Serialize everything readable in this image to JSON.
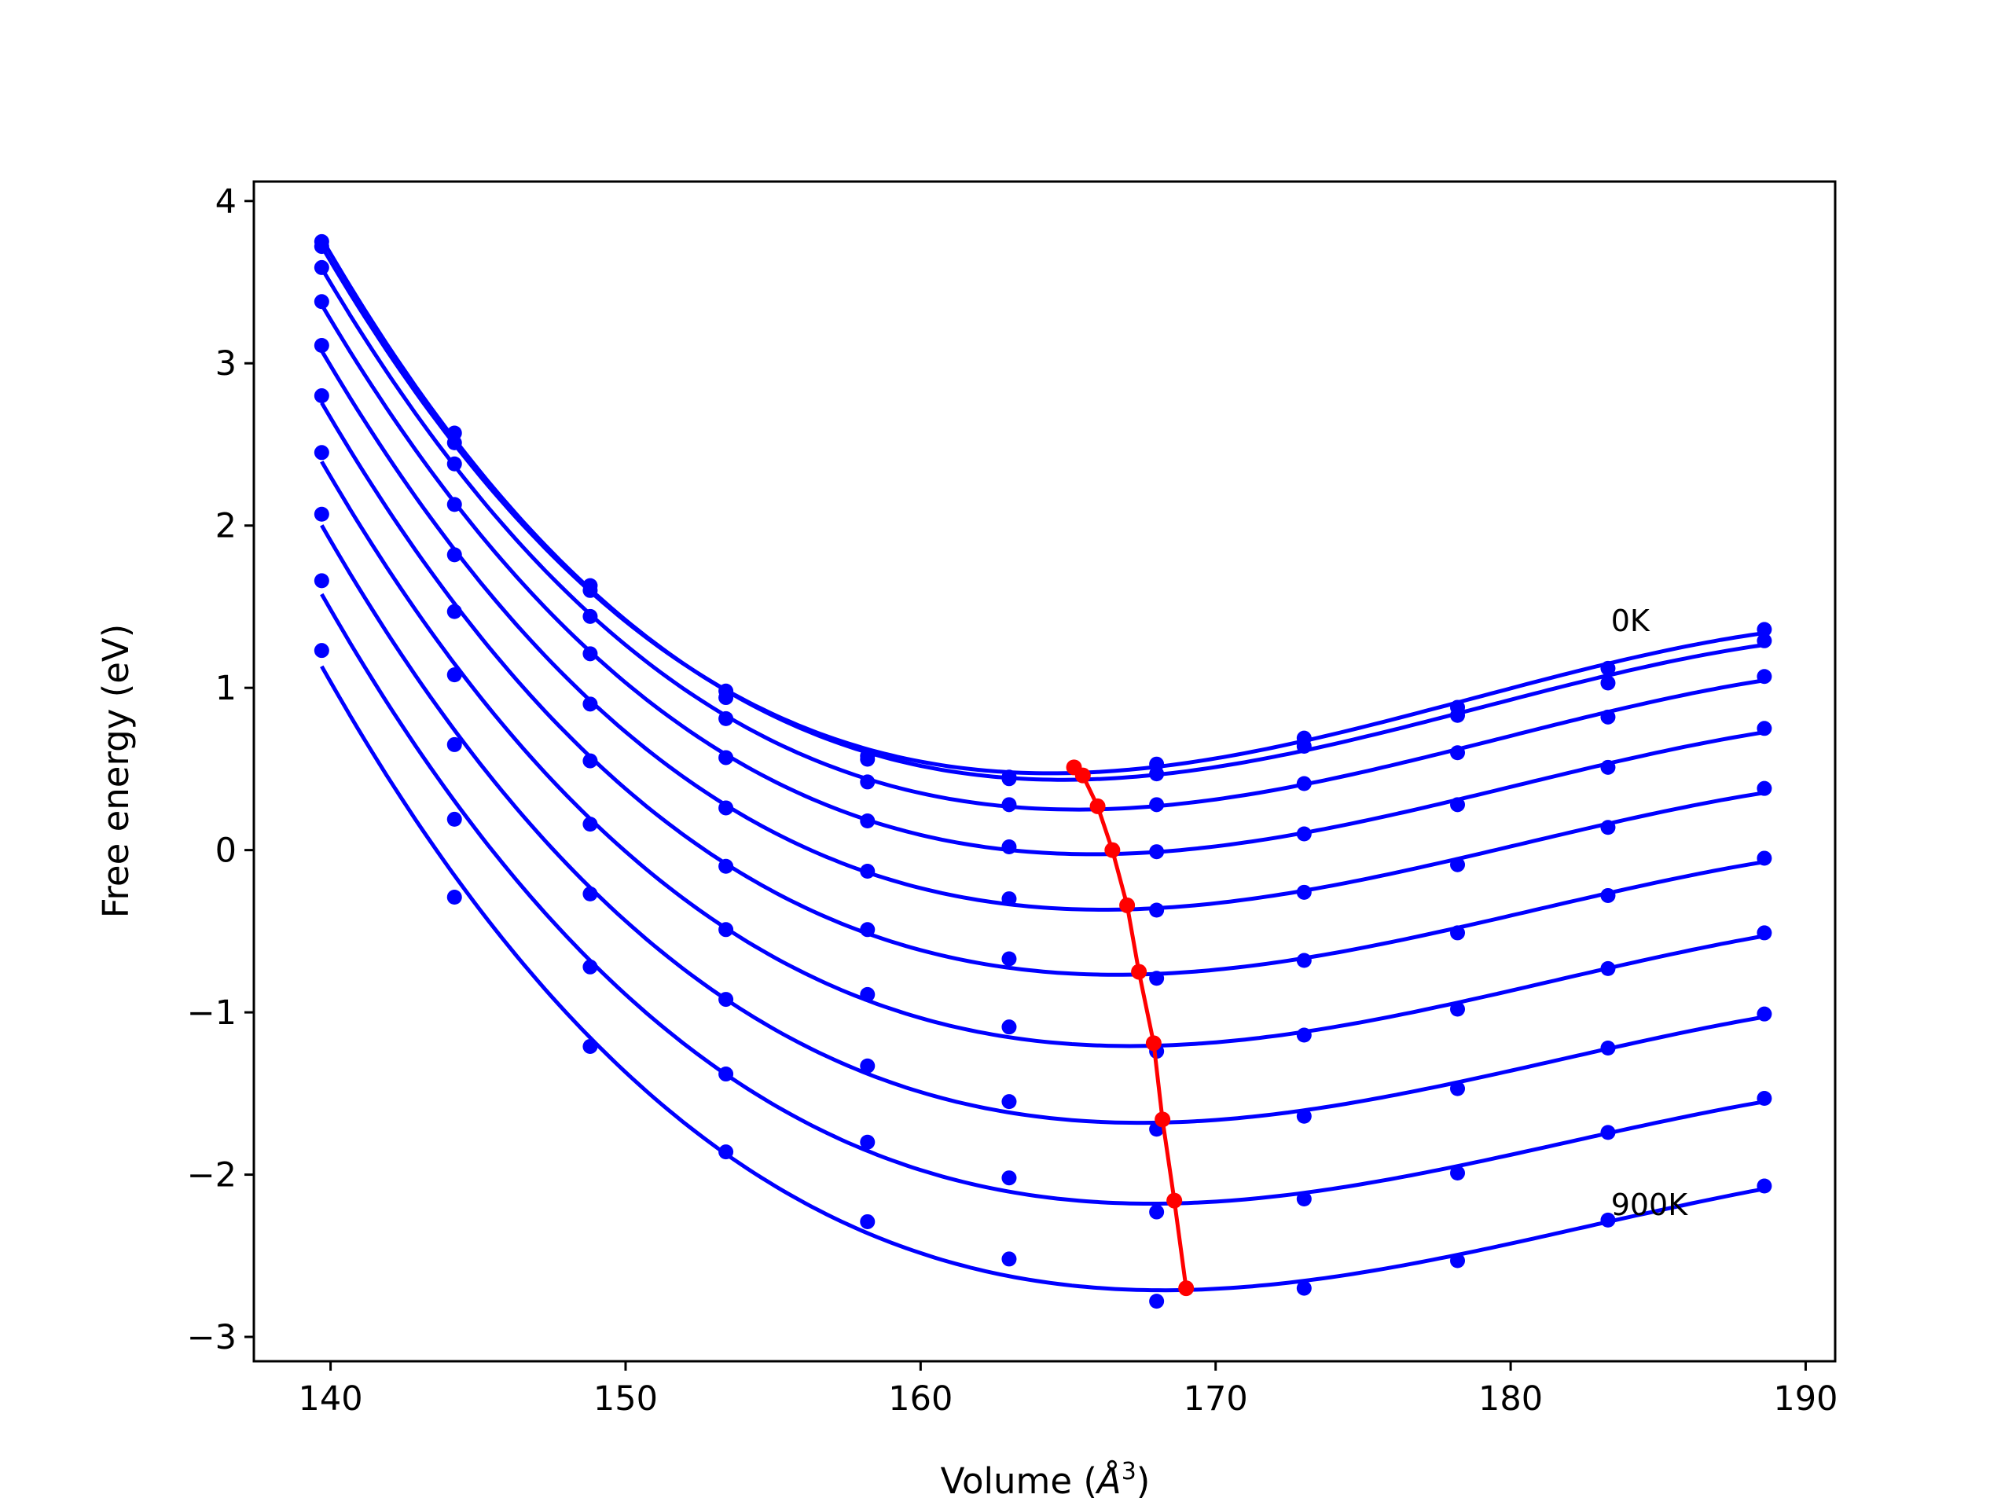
{
  "chart_data": {
    "type": "line",
    "xlabel": "Volume (Å³)",
    "xlabel_prefix": "Volume (",
    "xlabel_unit_base": "Å",
    "xlabel_unit_exp": "3",
    "xlabel_suffix": ")",
    "ylabel": "Free energy (eV)",
    "xlim": [
      137.4,
      191.0
    ],
    "ylim": [
      -3.15,
      4.12
    ],
    "xticks": [
      140,
      150,
      160,
      170,
      180,
      190
    ],
    "yticks": [
      4,
      3,
      2,
      1,
      0,
      -1,
      -2,
      -3
    ],
    "ytick_labels": [
      "4",
      "3",
      "2",
      "1",
      "0",
      "−1",
      "−2",
      "−3"
    ],
    "grid": false,
    "annotations": [
      {
        "text": "0K",
        "x": 183.4,
        "y": 1.35
      },
      {
        "text": "900K",
        "x": 183.4,
        "y": -2.25
      }
    ],
    "colors": {
      "curves": "#0000ff",
      "minima": "#ff0000"
    },
    "x_points": [
      139.7,
      144.2,
      148.8,
      153.4,
      158.2,
      163.0,
      168.0,
      173.0,
      178.2,
      183.3,
      188.6
    ],
    "series": [
      {
        "values": [
          3.72,
          2.51,
          1.6,
          0.98,
          0.58,
          0.45,
          0.53,
          0.69,
          0.88,
          1.12,
          1.36
        ],
        "min_v": 165.2,
        "min_f": 0.51
      },
      {
        "values": [
          3.75,
          2.57,
          1.63,
          0.94,
          0.56,
          0.44,
          0.47,
          0.64,
          0.83,
          1.03,
          1.29
        ],
        "min_v": 165.5,
        "min_f": 0.46
      },
      {
        "values": [
          3.59,
          2.38,
          1.44,
          0.81,
          0.42,
          0.28,
          0.28,
          0.41,
          0.6,
          0.82,
          1.07
        ],
        "min_v": 166.0,
        "min_f": 0.27
      },
      {
        "values": [
          3.38,
          2.13,
          1.21,
          0.57,
          0.18,
          0.02,
          -0.01,
          0.1,
          0.28,
          0.51,
          0.75
        ],
        "min_v": 166.5,
        "min_f": 0.0
      },
      {
        "values": [
          3.11,
          1.82,
          0.9,
          0.26,
          -0.13,
          -0.3,
          -0.37,
          -0.26,
          -0.09,
          0.14,
          0.38
        ],
        "min_v": 167.0,
        "min_f": -0.34
      },
      {
        "values": [
          2.8,
          1.47,
          0.55,
          -0.1,
          -0.49,
          -0.67,
          -0.79,
          -0.68,
          -0.51,
          -0.28,
          -0.05
        ],
        "min_v": 167.4,
        "min_f": -0.75
      },
      {
        "values": [
          2.45,
          1.08,
          0.16,
          -0.49,
          -0.89,
          -1.09,
          -1.24,
          -1.14,
          -0.98,
          -0.73,
          -0.51
        ],
        "min_v": 167.9,
        "min_f": -1.19
      },
      {
        "values": [
          2.07,
          0.65,
          -0.27,
          -0.92,
          -1.33,
          -1.55,
          -1.72,
          -1.64,
          -1.47,
          -1.22,
          -1.01
        ],
        "min_v": 168.2,
        "min_f": -1.66
      },
      {
        "values": [
          1.66,
          0.19,
          -0.72,
          -1.38,
          -1.8,
          -2.02,
          -2.23,
          -2.15,
          -1.99,
          -1.74,
          -1.53
        ],
        "min_v": 168.6,
        "min_f": -2.16
      },
      {
        "values": [
          1.23,
          -0.29,
          -1.21,
          -1.86,
          -2.29,
          -2.52,
          -2.78,
          -2.7,
          -2.53,
          -2.28,
          -2.07
        ],
        "min_v": 169.0,
        "min_f": -2.7
      }
    ]
  }
}
